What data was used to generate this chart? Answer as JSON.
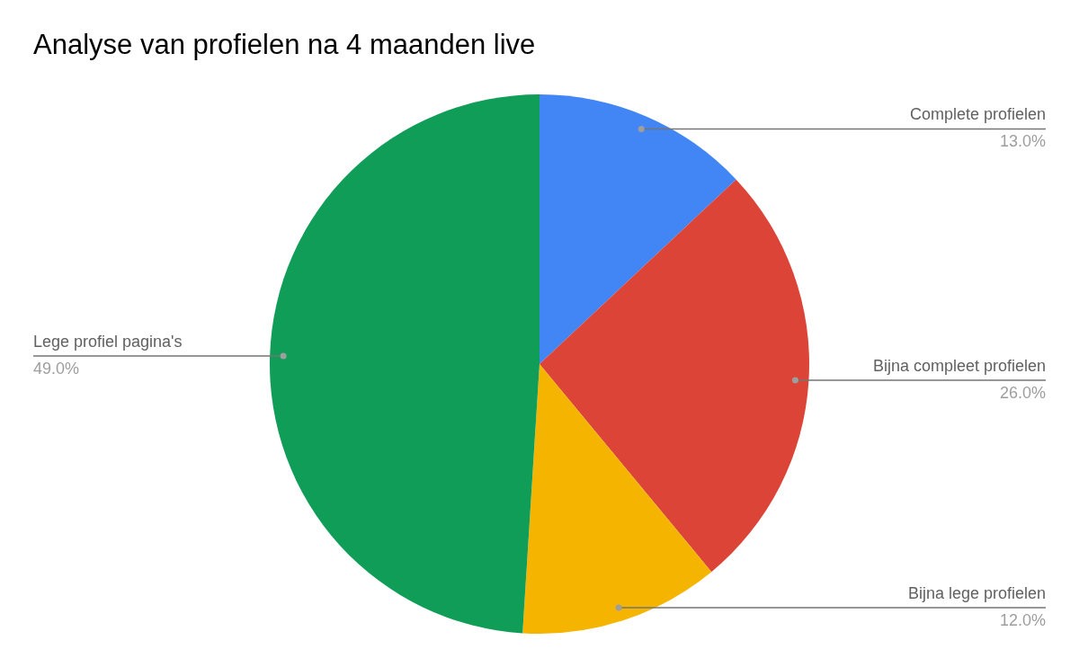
{
  "chart_data": {
    "type": "pie",
    "title": "Analyse van profielen na 4 maanden live",
    "categories": [
      "Complete profielen",
      "Bijna compleet profielen",
      "Bijna lege profielen",
      "Lege profiel pagina's"
    ],
    "values": [
      13,
      26,
      12,
      49
    ],
    "colors": [
      "#4285f4",
      "#db4437",
      "#f4b400",
      "#0f9d58"
    ],
    "value_labels": [
      "13.0%",
      "26.0%",
      "12.0%",
      "49.0%"
    ]
  }
}
